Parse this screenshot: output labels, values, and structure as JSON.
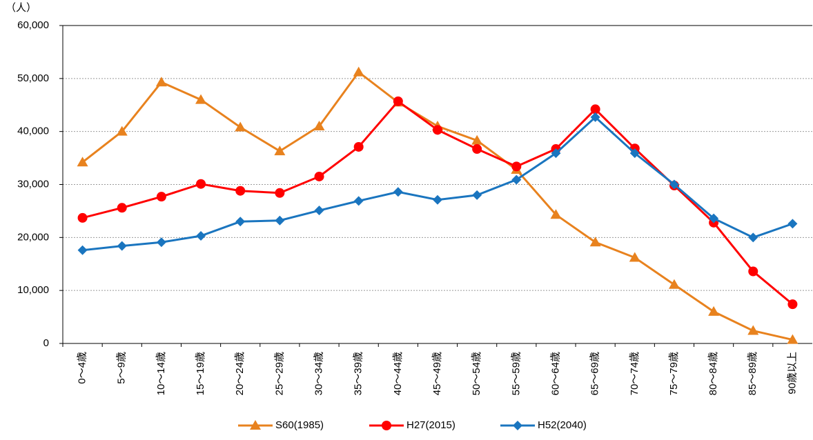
{
  "chart_data": {
    "type": "line",
    "unit_label": "（人）",
    "categories": [
      "0～4歳",
      "5～9歳",
      "10～14歳",
      "15～19歳",
      "20～24歳",
      "25～29歳",
      "30～34歳",
      "35～39歳",
      "40～44歳",
      "45～49歳",
      "50～54歳",
      "55～59歳",
      "60～64歳",
      "65～69歳",
      "70～74歳",
      "75～79歳",
      "80～84歳",
      "85～89歳",
      "90歳以上"
    ],
    "series": [
      {
        "name": "S60(1985)",
        "color": "#e8821e",
        "marker": "triangle",
        "values": [
          34200,
          40000,
          49300,
          46000,
          40800,
          36300,
          41000,
          51200,
          45500,
          41000,
          38300,
          32800,
          24300,
          19100,
          16200,
          11100,
          6000,
          2400,
          700
        ]
      },
      {
        "name": "H27(2015)",
        "color": "#ff0000",
        "marker": "circle",
        "values": [
          23700,
          25600,
          27700,
          30100,
          28800,
          28400,
          31500,
          37100,
          45700,
          40300,
          36700,
          33400,
          36700,
          44200,
          36800,
          29800,
          22800,
          13600,
          7400
        ]
      },
      {
        "name": "H52(2040)",
        "color": "#1a75bf",
        "marker": "diamond",
        "values": [
          17600,
          18400,
          19100,
          20300,
          23000,
          23200,
          25100,
          26900,
          28600,
          27100,
          28000,
          30900,
          35900,
          42700,
          35900,
          30000,
          23600,
          20000,
          22600
        ]
      }
    ],
    "ylim": [
      0,
      60000
    ],
    "yticks": [
      0,
      {
        "value": 10000,
        "label": "10,000"
      },
      {
        "value": 20000,
        "label": "20,000"
      },
      {
        "value": 30000,
        "label": "30,000"
      },
      {
        "value": 40000,
        "label": "40,000"
      },
      {
        "value": 50000,
        "label": "50,000"
      },
      {
        "value": 60000,
        "label": "60,000"
      }
    ],
    "grid": true,
    "legend": "bottom"
  }
}
